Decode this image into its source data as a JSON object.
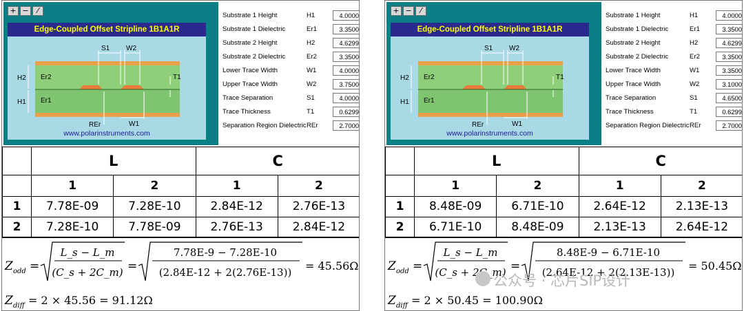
{
  "panels": [
    {
      "title": "Edge-Coupled Offset Stripline 1B1A1R",
      "website": "www.polarinstruments.com",
      "toolbar": [
        "+",
        "−",
        "⁄"
      ],
      "diagram_labels": {
        "s1": "S1",
        "w2": "W2",
        "h2": "H2",
        "er2": "Er2",
        "t1": "T1",
        "h1": "H1",
        "er1": "Er1",
        "rer": "REr",
        "w1": "W1"
      },
      "params": [
        {
          "name": "Substrate 1 Height",
          "sym": "H1",
          "value": "4.0000"
        },
        {
          "name": "Substrate 1 Dielectric",
          "sym": "Er1",
          "value": "3.3500"
        },
        {
          "name": "Substrate 2 Height",
          "sym": "H2",
          "value": "4.6299"
        },
        {
          "name": "Substrate 2 Dielectric",
          "sym": "Er2",
          "value": "3.3500"
        },
        {
          "name": "Lower Trace Width",
          "sym": "W1",
          "value": "4.0000"
        },
        {
          "name": "Upper Trace Width",
          "sym": "W2",
          "value": "3.7500"
        },
        {
          "name": "Trace Separation",
          "sym": "S1",
          "value": "4.0000"
        },
        {
          "name": "Trace Thickness",
          "sym": "T1",
          "value": "0.6299"
        },
        {
          "name": "Separation Region Dielectric",
          "sym": "REr",
          "value": "2.7000"
        }
      ],
      "matrix": {
        "group_headers": [
          "L",
          "C"
        ],
        "sub_headers": [
          "1",
          "2",
          "1",
          "2"
        ],
        "rows": [
          {
            "label": "1",
            "values": [
              "7.78E-09",
              "7.28E-10",
              "2.84E-12",
              "2.76E-13"
            ]
          },
          {
            "label": "2",
            "values": [
              "7.28E-10",
              "7.78E-09",
              "2.76E-13",
              "2.84E-12"
            ]
          }
        ]
      },
      "equations": {
        "z": "Z",
        "odd_sub": "odd",
        "diff_sub": "diff",
        "sym_num": "L_s − L_m",
        "sym_den": "(C_s + 2C_m)",
        "num": "7.78E-9 − 7.28E-10",
        "den": "(2.84E-12 + 2(2.76E-13))",
        "odd_result": "= 45.56Ω",
        "diff_expr": "= 2 × 45.56 = 91.12Ω"
      }
    },
    {
      "title": "Edge-Coupled Offset Stripline 1B1A1R",
      "website": "www.polarinstruments.com",
      "toolbar": [
        "+",
        "−",
        "⁄"
      ],
      "diagram_labels": {
        "s1": "S1",
        "w2": "W2",
        "h2": "H2",
        "er2": "Er2",
        "t1": "T1",
        "h1": "H1",
        "er1": "Er1",
        "rer": "REr",
        "w1": "W1"
      },
      "params": [
        {
          "name": "Substrate 1 Height",
          "sym": "H1",
          "value": "4.0000"
        },
        {
          "name": "Substrate 1 Dielectric",
          "sym": "Er1",
          "value": "3.3500"
        },
        {
          "name": "Substrate 2 Height",
          "sym": "H2",
          "value": "4.6299"
        },
        {
          "name": "Substrate 2 Dielectric",
          "sym": "Er2",
          "value": "3.3500"
        },
        {
          "name": "Lower Trace Width",
          "sym": "W1",
          "value": "3.3500"
        },
        {
          "name": "Upper Trace Width",
          "sym": "W2",
          "value": "3.1000"
        },
        {
          "name": "Trace Separation",
          "sym": "S1",
          "value": "4.6500"
        },
        {
          "name": "Trace Thickness",
          "sym": "T1",
          "value": "0.6299"
        },
        {
          "name": "Separation Region Dielectric",
          "sym": "REr",
          "value": "2.7000"
        }
      ],
      "matrix": {
        "group_headers": [
          "L",
          "C"
        ],
        "sub_headers": [
          "1",
          "2",
          "1",
          "2"
        ],
        "rows": [
          {
            "label": "1",
            "values": [
              "8.48E-09",
              "6.71E-10",
              "2.64E-12",
              "2.13E-13"
            ]
          },
          {
            "label": "2",
            "values": [
              "6.71E-10",
              "8.48E-09",
              "2.13E-13",
              "2.64E-12"
            ]
          }
        ]
      },
      "equations": {
        "z": "Z",
        "odd_sub": "odd",
        "diff_sub": "diff",
        "sym_num": "L_s − L_m",
        "sym_den": "(C_s + 2C_m)",
        "num": "8.48E-9 − 6.71E-10",
        "den": "(2.64E-12 + 2(2.13E-13))",
        "odd_result": "= 50.45Ω",
        "diff_expr": "= 2 × 50.45 = 100.90Ω"
      }
    }
  ],
  "watermark": "公众号 · 芯片SIP设计",
  "colors": {
    "teal": "#0b7f86",
    "title_bg": "#2a2a8e",
    "title_text": "#ffff00",
    "substrate": "#8fcf7a",
    "copper": "#e8a04a",
    "trace": "#e87a3a"
  }
}
